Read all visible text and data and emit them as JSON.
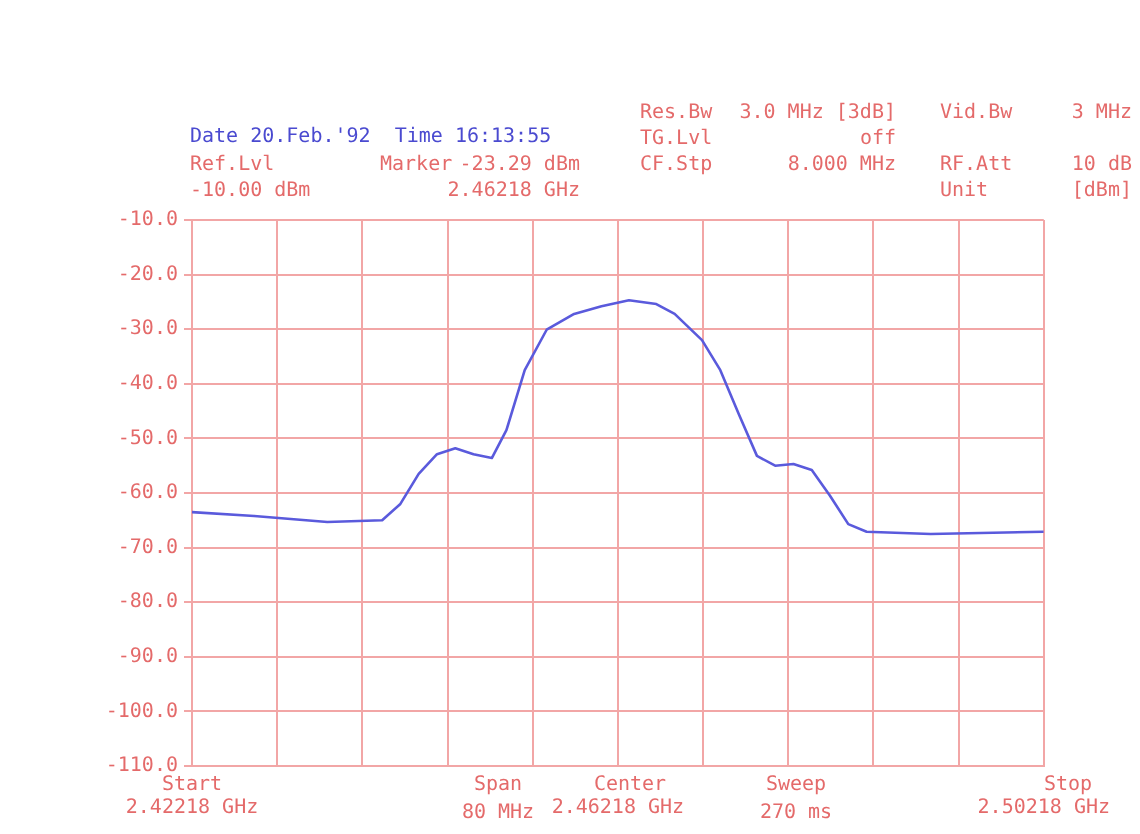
{
  "chart_data": {
    "type": "line",
    "x": [
      2.42218,
      2.42802,
      2.43489,
      2.44004,
      2.44175,
      2.44347,
      2.44519,
      2.44691,
      2.44862,
      2.45034,
      2.45171,
      2.45343,
      2.45549,
      2.45807,
      2.46064,
      2.46322,
      2.46579,
      2.46751,
      2.47008,
      2.4718,
      2.47352,
      2.47524,
      2.47695,
      2.47867,
      2.48039,
      2.4821,
      2.48382,
      2.48554,
      2.49155,
      2.50218
    ],
    "series": [
      {
        "color": "#5a5adc",
        "values": [
          -63.5,
          -64.2,
          -65.3,
          -65,
          -62,
          -56.5,
          -52.9,
          -51.8,
          -52.9,
          -53.6,
          -48.5,
          -37.5,
          -30.1,
          -27.2,
          -25.8,
          -24.7,
          -25.4,
          -27.2,
          -32,
          -37.5,
          -45.5,
          -53.2,
          -55,
          -54.7,
          -55.8,
          -60.5,
          -65.7,
          -67.1,
          -67.5,
          -67.1
        ]
      }
    ],
    "xlim": [
      2.42218,
      2.50218
    ],
    "xticks": [
      {
        "value": 2.42218,
        "label": "2.42218 GHz"
      },
      {
        "value": 2.43018,
        "label": null
      },
      {
        "value": 2.43818,
        "label": null
      },
      {
        "value": 2.44618,
        "label": null
      },
      {
        "value": 2.45418,
        "label": null
      },
      {
        "value": 2.46218,
        "label": "2.46218 GHz"
      },
      {
        "value": 2.47018,
        "label": null
      },
      {
        "value": 2.47818,
        "label": null
      },
      {
        "value": 2.48618,
        "label": null
      },
      {
        "value": 2.49418,
        "label": null
      },
      {
        "value": 2.50218,
        "label": "2.50218 GHz"
      }
    ],
    "ylim": [
      -110,
      -10
    ],
    "yticks": [
      {
        "value": -10,
        "label": "-10.0"
      },
      {
        "value": -20,
        "label": "-20.0"
      },
      {
        "value": -30,
        "label": "-30.0"
      },
      {
        "value": -40,
        "label": "-40.0"
      },
      {
        "value": -50,
        "label": "-50.0"
      },
      {
        "value": -60,
        "label": "-60.0"
      },
      {
        "value": -70,
        "label": "-70.0"
      },
      {
        "value": -80,
        "label": "-80.0"
      },
      {
        "value": -90,
        "label": "-90.0"
      },
      {
        "value": -100,
        "label": "-100.0"
      },
      {
        "value": -110,
        "label": "-110.0"
      }
    ],
    "grid": true,
    "legend": false,
    "marker": "none",
    "line_style": "solid",
    "annotations": [
      "Date 20.Feb.'92  Time 16:13:55",
      "Ref.Lvl",
      "-10.00 dBm",
      "Marker",
      "-23.29 dBm",
      "2.46218 GHz",
      "Res.Bw",
      "TG.Lvl",
      "CF.Stp",
      "3.0 MHz [3dB]",
      "off",
      "8.000 MHz",
      "Vid.Bw",
      "RF.Att",
      "Unit",
      "3 MHz",
      "10 dB",
      "[dBm]",
      "Start",
      "Span\n80 MHz",
      "Center",
      "Sweep\n270 ms",
      "Stop"
    ]
  }
}
